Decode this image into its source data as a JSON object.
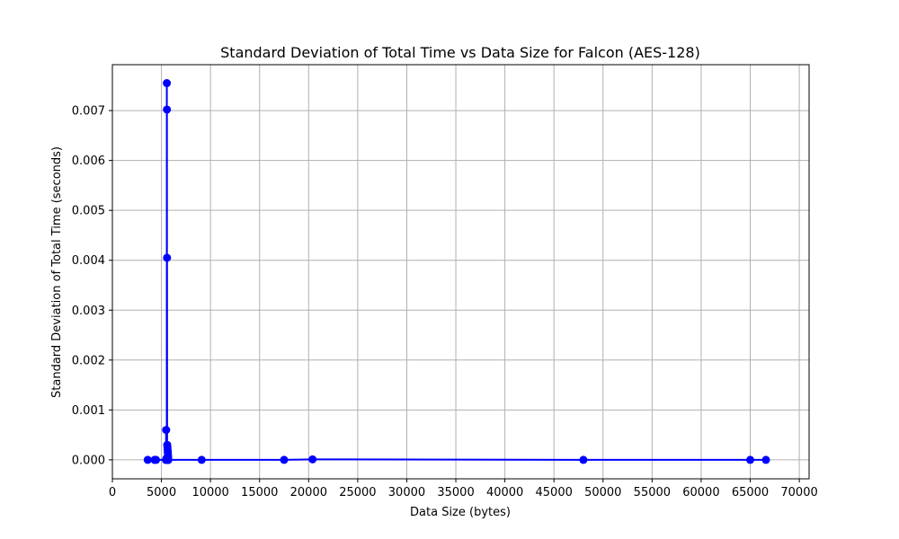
{
  "chart_data": {
    "type": "line",
    "title": "Standard Deviation of Total Time vs Data Size for Falcon (AES-128)",
    "xlabel": "Data Size (bytes)",
    "ylabel": "Standard Deviation of Total Time (seconds)",
    "xlim": [
      0,
      71000
    ],
    "ylim": [
      -0.00038,
      0.00792
    ],
    "xticks": [
      0,
      5000,
      10000,
      15000,
      20000,
      25000,
      30000,
      35000,
      40000,
      45000,
      50000,
      55000,
      60000,
      65000,
      70000
    ],
    "xtick_labels": [
      "0",
      "5000",
      "10000",
      "15000",
      "20000",
      "25000",
      "30000",
      "35000",
      "40000",
      "45000",
      "50000",
      "55000",
      "60000",
      "65000",
      "70000"
    ],
    "yticks": [
      0,
      0.001,
      0.002,
      0.003,
      0.004,
      0.005,
      0.006,
      0.007
    ],
    "ytick_labels": [
      "0.000",
      "0.001",
      "0.002",
      "0.003",
      "0.004",
      "0.005",
      "0.006",
      "0.007"
    ],
    "grid": true,
    "series": [
      {
        "color": "#0000ff",
        "marker": "circle",
        "x": [
          3600,
          4300,
          4450,
          5450,
          5480,
          5500,
          5510,
          5520,
          5530,
          5540,
          5545,
          5550,
          5555,
          5560,
          5565,
          5570,
          5580,
          5590,
          5600,
          5610,
          5620,
          5630,
          5640,
          5650,
          5660,
          5670,
          5680,
          5690,
          5700,
          9100,
          17500,
          20400,
          48000,
          65000,
          66600
        ],
        "y": [
          0.0,
          0.0,
          0.0,
          0.0,
          0.0006,
          0.0,
          0.0,
          3e-05,
          0.0,
          1e-05,
          0.0,
          0.00755,
          0.0,
          0.00702,
          0.0,
          0.00405,
          0.0,
          0.0003,
          0.0,
          0.00025,
          0.0,
          0.0002,
          0.0,
          0.00015,
          0.0,
          0.0001,
          5e-05,
          0.0,
          0.0,
          0.0,
          0.0,
          1e-05,
          0.0,
          0.0,
          0.0
        ]
      }
    ]
  }
}
